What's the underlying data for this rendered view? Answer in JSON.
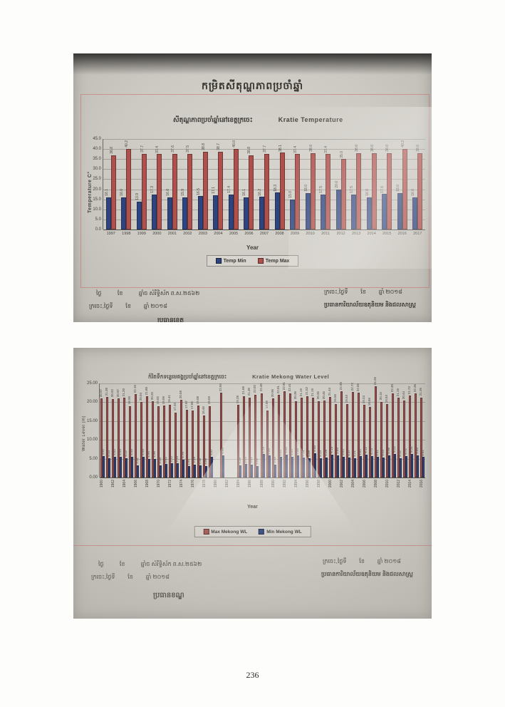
{
  "page": {
    "number": "236"
  },
  "photo1": {
    "main_title": "កម្រិតសីតុណ្ហភាពប្រចាំឆ្នាំ",
    "subtitle_khmer": "សីតុណ្ហភាពប្រចាំឆ្នាំនៅខេត្តក្រចេះ",
    "subtitle_english": "Kratie Temperature",
    "footer": {
      "left_line1": "ថ្ងៃ          ខែ          ឆ្នាំច សំរឹទ្ធិស័ក ព.ស.២៥៦២",
      "left_line2": "ក្រចេះ,ថ្ងៃទី        ខែ        ឆ្នាំ ២០១៨",
      "right_line1": "ក្រចេះ,ថ្ងៃទី        ខែ        ឆ្នាំ ២០១៨",
      "right_line2": "ប្រធានការិយាល័យឧតុនិយម និងជលសាស្ត្រ",
      "partial_bottom": "ប្រធានខេត្ត"
    }
  },
  "photo2": {
    "subtitle_khmer": "កំរិតទឹកទន្លេមេគង្គប្រចាំឆ្នាំនៅខេត្តក្រចេះ",
    "subtitle_english": "Kratie Mekong Water Level",
    "footer": {
      "left_line1": "ថ្ងៃ          ខែ          ឆ្នាំច សំរឹទ្ធិស័ក ព.ស.២៥៦២",
      "left_line2": "ក្រចេះ,ថ្ងៃទី        ខែ        ឆ្នាំ ២០១៨",
      "signature": "ប្រធានខណ្ឌ",
      "right_line1": "ក្រចេះ,ថ្ងៃទី        ខែ        ឆ្នាំ ២០១៨",
      "right_line2": "ប្រធានការិយាល័យឧតុនិយម និងជលសាស្ត្រ"
    }
  },
  "chart_data": [
    {
      "type": "bar",
      "title": "Kratie Temperature",
      "xlabel": "Year",
      "ylabel": "Temperature C°",
      "ylim": [
        0,
        45
      ],
      "ytick_step": 5,
      "ytick_labels": [
        "45.0",
        "40.0",
        "35.0",
        "30.0",
        "25.0",
        "20.0",
        "15.0",
        "10.0",
        "5.0",
        "0.0"
      ],
      "grid": true,
      "legend_position": "bottom",
      "value_label_decimals": 1,
      "categories": [
        "1997",
        "1998",
        "1999",
        "2000",
        "2001",
        "2002",
        "2003",
        "2004",
        "2005",
        "2006",
        "2007",
        "2008",
        "2009",
        "2010",
        "2011",
        "2012",
        "2013",
        "2014",
        "2015",
        "2016",
        "2017"
      ],
      "series": [
        {
          "name": "Temp Min",
          "color": "#2e4480",
          "values": [
            16.1,
            16.0,
            13.9,
            17.3,
            16.0,
            15.9,
            16.5,
            17.1,
            17.4,
            16.1,
            16.2,
            18.3,
            15.0,
            18.0,
            17.5,
            20.0,
            17.5,
            16.0,
            17.6,
            18.0,
            16.0
          ]
        },
        {
          "name": "Temp Max",
          "color": "#b0504b",
          "values": [
            36.8,
            40.2,
            37.7,
            37.4,
            37.6,
            37.5,
            38.8,
            38.7,
            40.0,
            36.8,
            37.7,
            38.1,
            37.4,
            38.0,
            37.4,
            35.0,
            38.0,
            38.0,
            38.0,
            40.2,
            38.0
          ]
        }
      ]
    },
    {
      "type": "bar",
      "title": "Kratie Mekong Water Level",
      "xlabel": "Year",
      "ylabel": "Water Level (m)",
      "ylim": [
        0,
        25
      ],
      "ytick_step": 5,
      "ytick_labels": [
        "25.00",
        "20.00",
        "15.00",
        "10.00",
        "5.00",
        "0.00"
      ],
      "grid": true,
      "legend_position": "bottom",
      "value_label_decimals": 2,
      "xtick_every": 2,
      "categories": [
        "1960",
        "1961",
        "1962",
        "1963",
        "1964",
        "1965",
        "1966",
        "1967",
        "1968",
        "1969",
        "1970",
        "1971",
        "1972",
        "1973",
        "1974",
        "1975",
        "1976",
        "1977",
        "1978",
        "1979",
        "1980",
        "1981",
        "1982",
        "1983",
        "1984",
        "1985",
        "1986",
        "1987",
        "1988",
        "1989",
        "1990",
        "1991",
        "1992",
        "1993",
        "1994",
        "1995",
        "1996",
        "1997",
        "1998",
        "1999",
        "2000",
        "2001",
        "2002",
        "2003",
        "2004",
        "2005",
        "2006",
        "2007",
        "2008",
        "2009",
        "2010",
        "2011",
        "2012",
        "2013",
        "2014",
        "2015",
        "2016"
      ],
      "series": [
        {
          "name": "Max Mekong WL",
          "color": "#a4524c",
          "values": [
            20.97,
            21.38,
            20.92,
            20.97,
            21.2,
            18.99,
            22.1,
            20.04,
            21.6,
            20.25,
            19.02,
            19.09,
            19.41,
            17.32,
            20.58,
            17.97,
            17.85,
            19.08,
            16.46,
            19.03,
            null,
            22.5,
            null,
            null,
            19.28,
            21.68,
            21.3,
            22.02,
            22.4,
            17.89,
            20.96,
            22.01,
            22.91,
            22.41,
            20.36,
            21.19,
            21.52,
            21.19,
            20.35,
            20.46,
            21.44,
            19.56,
            22.9,
            19.53,
            22.72,
            22.55,
            19.24,
            18.66,
            24.26,
            20.15,
            19.53,
            22.3,
            21.19,
            20.44,
            21.73,
            22.36,
            21.26
          ]
        },
        {
          "name": "Min Mekong WL",
          "color": "#2e4480",
          "values": [
            5.67,
            5.14,
            5.52,
            5.49,
            5.12,
            5.45,
            3.31,
            5.45,
            4.94,
            4.96,
            3.24,
            3.52,
            3.72,
            3.7,
            4.7,
            2.97,
            3.39,
            3.16,
            3.06,
            5.47,
            null,
            5.9,
            null,
            null,
            3.28,
            3.53,
            3.41,
            3.05,
            6.18,
            5.8,
            3.48,
            5.43,
            6.02,
            5.52,
            5.8,
            5.24,
            5.09,
            6.4,
            5.14,
            5.28,
            6.14,
            5.84,
            5.52,
            5.37,
            5.21,
            5.62,
            6.12,
            5.73,
            5.41,
            5.33,
            5.96,
            6.22,
            5.12,
            5.71,
            6.31,
            5.83,
            5.41
          ]
        }
      ]
    }
  ]
}
